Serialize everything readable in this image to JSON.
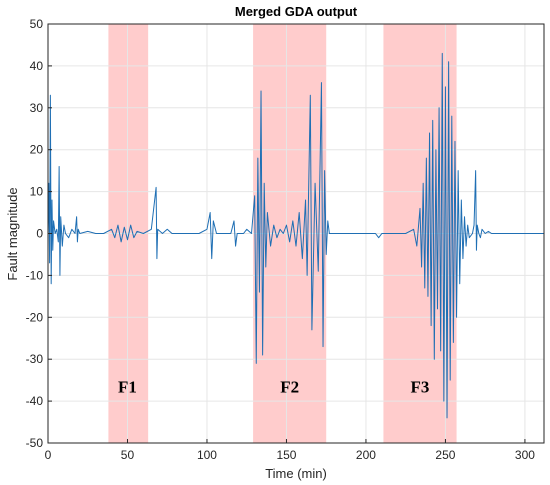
{
  "chart_data": {
    "type": "line",
    "title": "Merged GDA output",
    "xlabel": "Time (min)",
    "ylabel": "Fault magnitude",
    "xlim": [
      0,
      312
    ],
    "ylim": [
      -50,
      50
    ],
    "xticks": [
      0,
      50,
      100,
      150,
      200,
      250,
      300
    ],
    "yticks": [
      -50,
      -40,
      -30,
      -20,
      -10,
      0,
      10,
      20,
      30,
      40,
      50
    ],
    "grid": true,
    "legend": "none",
    "colors": {
      "line": "#1f6fb4",
      "region": "#ffcccc",
      "grid": "#e6e6e6"
    },
    "fault_regions": [
      {
        "label": "F1",
        "start": 38,
        "end": 63,
        "label_x": 50,
        "label_y": -38
      },
      {
        "label": "F2",
        "start": 129,
        "end": 175,
        "label_x": 152,
        "label_y": -38
      },
      {
        "label": "F3",
        "start": 211,
        "end": 257,
        "label_x": 234,
        "label_y": -38
      }
    ],
    "series": [
      {
        "values": [
          [
            0,
            0
          ],
          [
            0.5,
            12
          ],
          [
            1,
            -7
          ],
          [
            1.5,
            33
          ],
          [
            2,
            -12
          ],
          [
            2.5,
            8
          ],
          [
            3,
            -4
          ],
          [
            3.5,
            3
          ],
          [
            4.5,
            0
          ],
          [
            5.5,
            1
          ],
          [
            6.5,
            -2
          ],
          [
            7,
            16
          ],
          [
            7.5,
            -10
          ],
          [
            8,
            4
          ],
          [
            9,
            -3
          ],
          [
            10,
            2
          ],
          [
            11,
            0
          ],
          [
            13,
            -1
          ],
          [
            15,
            1
          ],
          [
            17,
            0
          ],
          [
            18,
            4
          ],
          [
            18.5,
            -2
          ],
          [
            19,
            1
          ],
          [
            20,
            0
          ],
          [
            25,
            0.5
          ],
          [
            30,
            0
          ],
          [
            35,
            0
          ],
          [
            40,
            1
          ],
          [
            42,
            -1
          ],
          [
            44,
            2
          ],
          [
            46,
            -2
          ],
          [
            48,
            1.5
          ],
          [
            50,
            -1.5
          ],
          [
            52,
            2
          ],
          [
            54,
            -1
          ],
          [
            56,
            0.5
          ],
          [
            60,
            0
          ],
          [
            65,
            1
          ],
          [
            68,
            11
          ],
          [
            68.5,
            -6
          ],
          [
            69,
            1
          ],
          [
            72,
            0
          ],
          [
            75,
            1
          ],
          [
            78,
            0
          ],
          [
            85,
            0
          ],
          [
            90,
            0
          ],
          [
            95,
            0
          ],
          [
            100,
            1
          ],
          [
            102,
            5
          ],
          [
            103,
            -6
          ],
          [
            104,
            3
          ],
          [
            106,
            0
          ],
          [
            110,
            0
          ],
          [
            115,
            0
          ],
          [
            117,
            3
          ],
          [
            118,
            -3
          ],
          [
            119,
            0
          ],
          [
            123,
            0
          ],
          [
            125,
            1
          ],
          [
            128,
            0
          ],
          [
            130,
            9
          ],
          [
            131,
            -31
          ],
          [
            132,
            18
          ],
          [
            133,
            -14
          ],
          [
            134,
            34
          ],
          [
            135,
            -29
          ],
          [
            136,
            12
          ],
          [
            137,
            -8
          ],
          [
            138,
            5
          ],
          [
            140,
            -3
          ],
          [
            142,
            2
          ],
          [
            144,
            -1
          ],
          [
            146,
            1
          ],
          [
            148,
            0
          ],
          [
            150,
            2
          ],
          [
            152,
            -2
          ],
          [
            154,
            3
          ],
          [
            156,
            -3
          ],
          [
            158,
            5
          ],
          [
            160,
            -6
          ],
          [
            162,
            8
          ],
          [
            163,
            -10
          ],
          [
            165,
            33
          ],
          [
            166,
            -23
          ],
          [
            168,
            12
          ],
          [
            170,
            -9
          ],
          [
            172,
            36
          ],
          [
            173,
            -27
          ],
          [
            174,
            15
          ],
          [
            175,
            -5
          ],
          [
            176,
            3
          ],
          [
            177,
            0
          ],
          [
            180,
            0
          ],
          [
            190,
            0
          ],
          [
            200,
            0
          ],
          [
            206,
            0
          ],
          [
            208,
            -1
          ],
          [
            210,
            0
          ],
          [
            215,
            0
          ],
          [
            220,
            0
          ],
          [
            225,
            0
          ],
          [
            230,
            1
          ],
          [
            232,
            -3
          ],
          [
            234,
            6
          ],
          [
            235,
            -8
          ],
          [
            236,
            12
          ],
          [
            237,
            -13
          ],
          [
            238,
            18
          ],
          [
            239,
            -15
          ],
          [
            240,
            24
          ],
          [
            241,
            -22
          ],
          [
            242,
            27
          ],
          [
            243,
            -30
          ],
          [
            244,
            20
          ],
          [
            245,
            -18
          ],
          [
            246,
            30
          ],
          [
            247,
            -28
          ],
          [
            248,
            43
          ],
          [
            249,
            -40
          ],
          [
            250,
            35
          ],
          [
            251,
            -44
          ],
          [
            252,
            41
          ],
          [
            253,
            -35
          ],
          [
            254,
            28
          ],
          [
            255,
            -26
          ],
          [
            256,
            22
          ],
          [
            257,
            -20
          ],
          [
            258,
            15
          ],
          [
            259,
            -12
          ],
          [
            260,
            8
          ],
          [
            261,
            -6
          ],
          [
            262,
            4
          ],
          [
            263,
            -3
          ],
          [
            264,
            2
          ],
          [
            265,
            -1
          ],
          [
            267,
            0
          ],
          [
            268,
            2
          ],
          [
            269,
            15
          ],
          [
            269.5,
            -4
          ],
          [
            270,
            2
          ],
          [
            271,
            0
          ],
          [
            272,
            -1
          ],
          [
            273,
            1
          ],
          [
            275,
            0
          ],
          [
            277,
            0.5
          ],
          [
            279,
            0
          ],
          [
            285,
            0
          ],
          [
            290,
            0
          ],
          [
            300,
            0
          ],
          [
            312,
            0
          ]
        ]
      }
    ]
  }
}
